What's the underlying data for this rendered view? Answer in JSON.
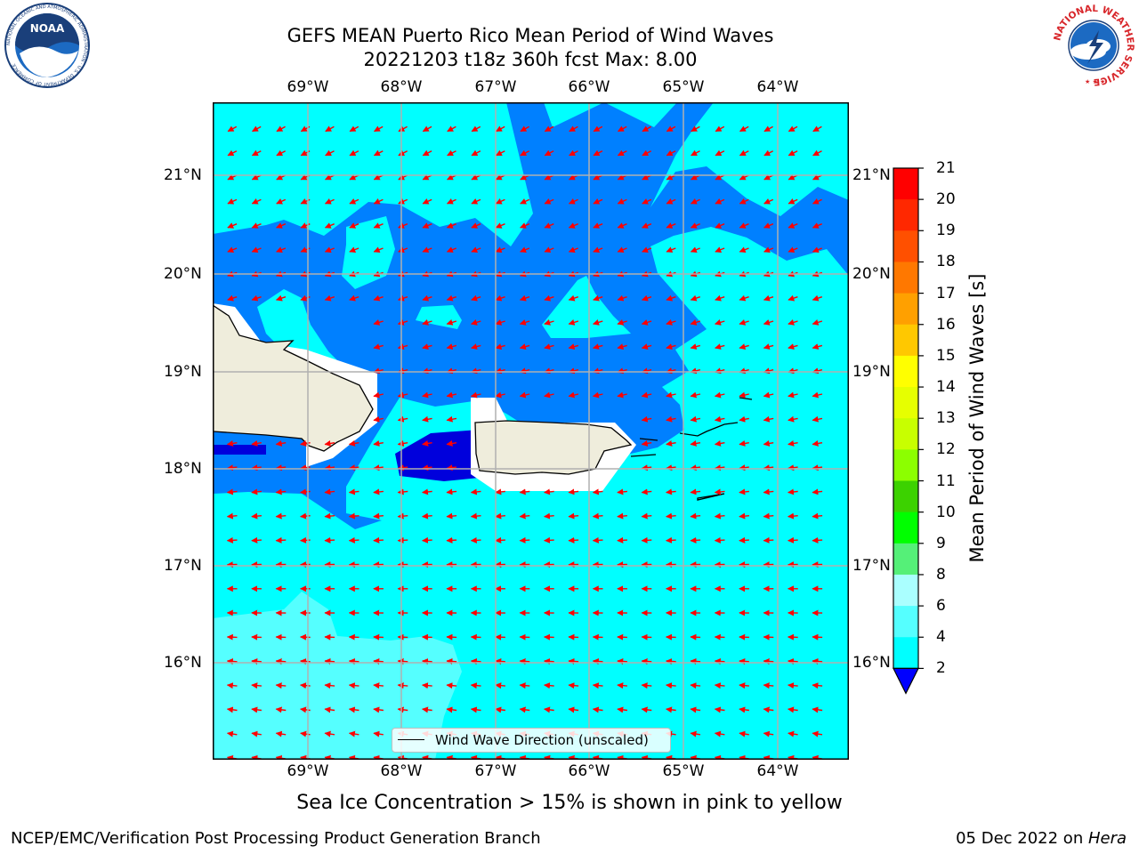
{
  "header": {
    "title_line1": "GEFS MEAN Puerto Rico Mean Period of Wind Waves",
    "title_line2": "20221203 t18z 360h fcst   Max: 8.00"
  },
  "logos": {
    "noaa_text": "NOAA",
    "noaa_ring_text": "NATIONAL OCEANIC AND ATMOSPHERIC ADMINISTRATION · U.S. DEPARTMENT OF COMMERCE",
    "nws_ring_text": "NATIONAL WEATHER SERVICE"
  },
  "map": {
    "lon_ticks": [
      "69°W",
      "68°W",
      "67°W",
      "66°W",
      "65°W",
      "64°W"
    ],
    "lat_ticks": [
      "21°N",
      "20°N",
      "19°N",
      "18°N",
      "17°N",
      "16°N"
    ],
    "lon_range": [
      -70,
      -63.25
    ],
    "lat_range": [
      15.0,
      21.75
    ],
    "arrow_direction": "toward southwest / west",
    "colors": {
      "ocean_4_6": "#00ffff",
      "ocean_2_4": "#0080ff",
      "ocean_below_2": "#0000dc",
      "ocean_6_8": "#55ffff",
      "land": "#efeddc",
      "arrows": "#ff0000",
      "grid": "#b0b0b0"
    }
  },
  "legend": {
    "label": "Wind Wave Direction (unscaled)"
  },
  "colorbar": {
    "title": "Mean Period of Wind Waves [s]",
    "tick_labels": [
      "21",
      "20",
      "19",
      "18",
      "17",
      "16",
      "15",
      "14",
      "13",
      "12",
      "11",
      "10",
      "9",
      "8",
      "6",
      "4",
      "2"
    ],
    "segment_colors": [
      "#ff0000",
      "#ff2800",
      "#ff5000",
      "#ff7800",
      "#ffa000",
      "#ffc800",
      "#ffff00",
      "#e6ff00",
      "#c8ff00",
      "#8cff00",
      "#3cd200",
      "#00ff00",
      "#55f078",
      "#aaffff",
      "#55ffff",
      "#00ffff",
      "#0080ff",
      "#0000ff"
    ]
  },
  "subtitle": "Sea Ice Concentration > 15% is shown in pink to yellow",
  "footer": {
    "left": "NCEP/EMC/Verification Post Processing Product Generation Branch",
    "date": "05 Dec 2022 on ",
    "host": "Hera"
  }
}
